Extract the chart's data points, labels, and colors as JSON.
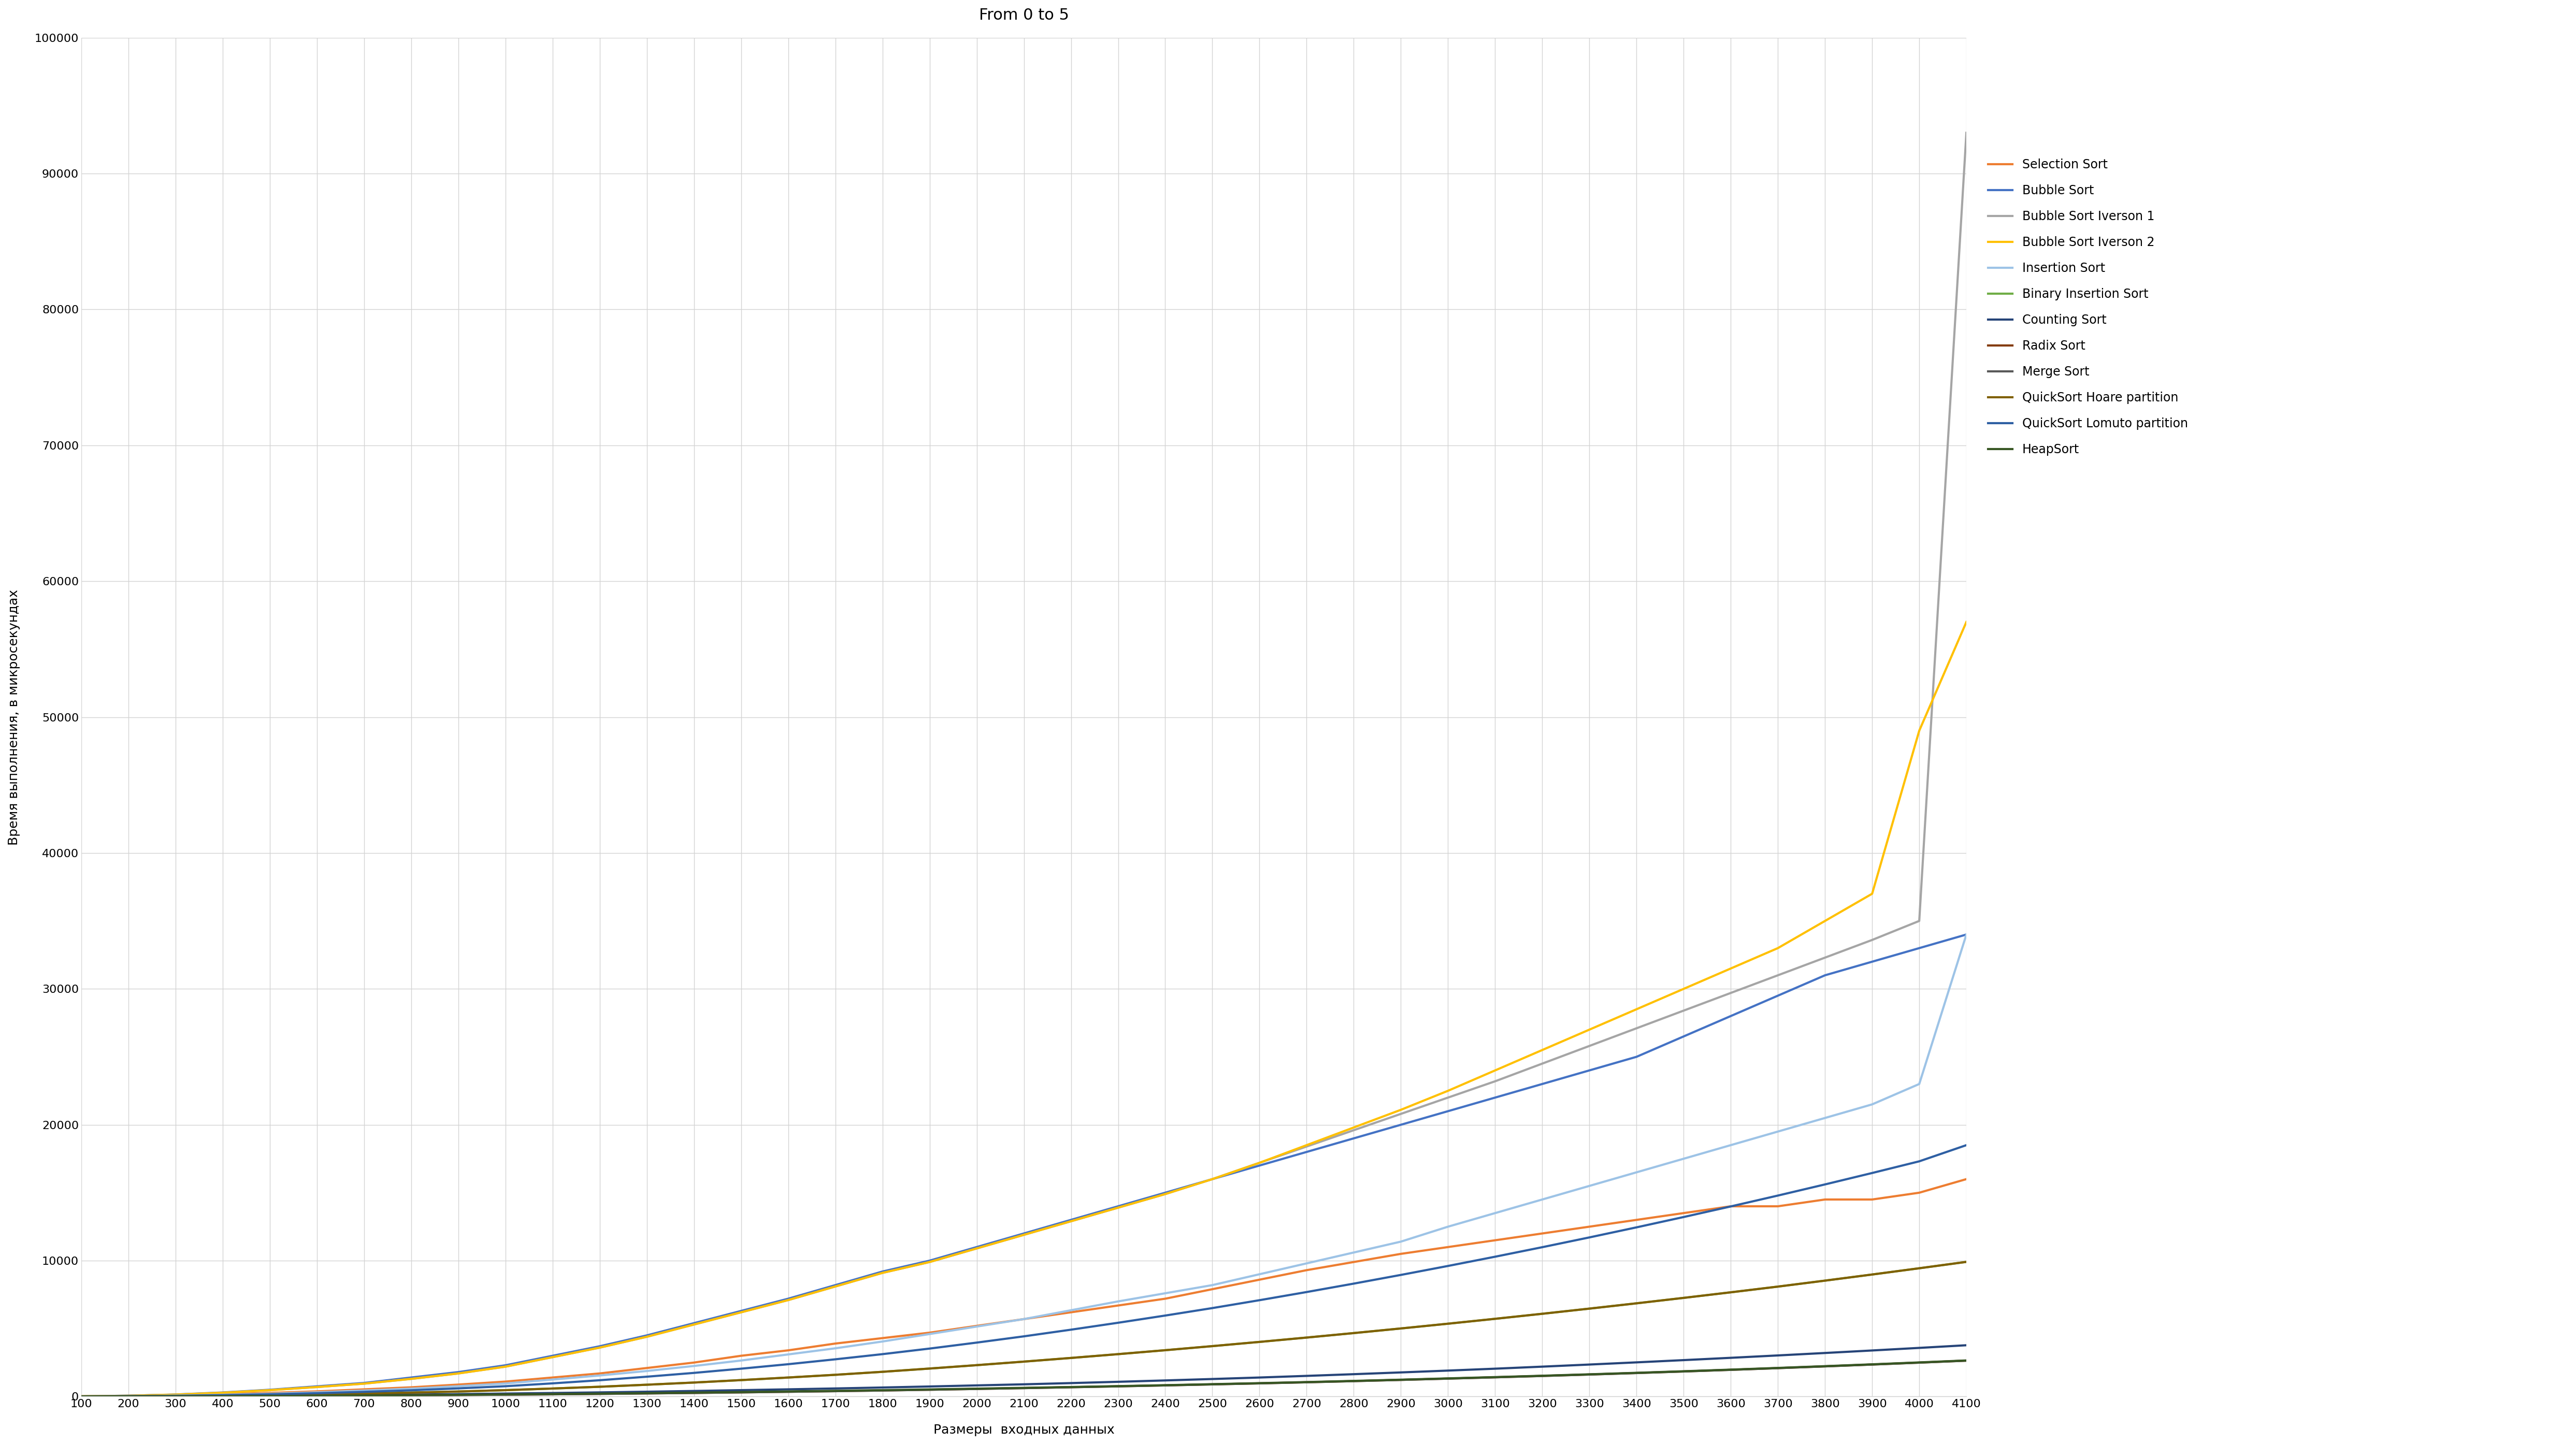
{
  "title": "From 0 to 5",
  "xlabel": "Размеры  входных данных",
  "ylabel": "Время выполнения, в микросекундах",
  "x": [
    100,
    200,
    300,
    400,
    500,
    600,
    700,
    800,
    900,
    1000,
    1100,
    1200,
    1300,
    1400,
    1500,
    1600,
    1700,
    1800,
    1900,
    2000,
    2100,
    2200,
    2300,
    2400,
    2500,
    2600,
    2700,
    2800,
    2900,
    3000,
    3100,
    3200,
    3300,
    3400,
    3500,
    3600,
    3700,
    3800,
    3900,
    4000,
    4100
  ],
  "series": {
    "Selection Sort": {
      "color": "#ED7D31",
      "data": [
        20,
        50,
        100,
        180,
        270,
        380,
        530,
        680,
        880,
        1100,
        1400,
        1700,
        2100,
        2500,
        3000,
        3400,
        3900,
        4300,
        4700,
        5200,
        5700,
        6200,
        6700,
        7200,
        7900,
        8600,
        9300,
        9900,
        10500,
        11000,
        11500,
        12000,
        12500,
        13000,
        13500,
        14000,
        14000,
        14500,
        14500,
        15000,
        16000
      ]
    },
    "Bubble Sort": {
      "color": "#4472C4",
      "data": [
        20,
        60,
        150,
        300,
        500,
        750,
        1000,
        1400,
        1800,
        2300,
        3000,
        3700,
        4500,
        5400,
        6300,
        7200,
        8200,
        9200,
        10000,
        11000,
        12000,
        13000,
        14000,
        15000,
        16000,
        17000,
        18000,
        19000,
        20000,
        21000,
        22000,
        23000,
        24000,
        25000,
        26500,
        28000,
        29500,
        31000,
        32000,
        33000,
        34000
      ]
    },
    "Bubble Sort Iverson 1": {
      "color": "#A5A5A5",
      "data": [
        20,
        60,
        140,
        280,
        470,
        700,
        950,
        1300,
        1700,
        2200,
        2900,
        3600,
        4400,
        5300,
        6200,
        7100,
        8100,
        9100,
        9900,
        10900,
        11900,
        12900,
        13900,
        14900,
        16000,
        17200,
        18400,
        19600,
        20800,
        22000,
        23200,
        24500,
        25800,
        27100,
        28400,
        29700,
        31000,
        32300,
        33600,
        35000,
        93000
      ]
    },
    "Bubble Sort Iverson 2": {
      "color": "#FFC000",
      "data": [
        20,
        60,
        140,
        280,
        470,
        700,
        950,
        1300,
        1700,
        2200,
        2900,
        3600,
        4400,
        5300,
        6200,
        7100,
        8100,
        9100,
        9900,
        10900,
        11900,
        12900,
        13900,
        14900,
        16000,
        17200,
        18500,
        19800,
        21100,
        22500,
        24000,
        25500,
        27000,
        28500,
        30000,
        31500,
        33000,
        35000,
        37000,
        49000,
        57000
      ]
    },
    "Insertion Sort": {
      "color": "#9DC3E6",
      "data": [
        10,
        30,
        70,
        130,
        210,
        310,
        440,
        580,
        760,
        960,
        1250,
        1550,
        1880,
        2250,
        2650,
        3100,
        3550,
        4050,
        4600,
        5150,
        5700,
        6350,
        7000,
        7600,
        8200,
        9000,
        9800,
        10600,
        11400,
        12500,
        13500,
        14500,
        15500,
        16500,
        17500,
        18500,
        19500,
        20500,
        21500,
        23000,
        34000
      ]
    },
    "Binary Insertion Sort": {
      "color": "#70AD47",
      "data": [
        10,
        20,
        40,
        70,
        110,
        160,
        220,
        290,
        370,
        470,
        590,
        720,
        870,
        1030,
        1210,
        1400,
        1600,
        1820,
        2060,
        2310,
        2570,
        2840,
        3120,
        3410,
        3710,
        4020,
        4340,
        4670,
        5010,
        5360,
        5720,
        6090,
        6470,
        6860,
        7260,
        7670,
        8090,
        8530,
        8980,
        9440,
        9910
      ]
    },
    "Counting Sort": {
      "color": "#264478",
      "data": [
        10,
        20,
        35,
        50,
        70,
        90,
        115,
        145,
        180,
        220,
        260,
        305,
        355,
        410,
        470,
        530,
        595,
        665,
        740,
        820,
        900,
        990,
        1085,
        1185,
        1290,
        1400,
        1520,
        1645,
        1775,
        1910,
        2050,
        2200,
        2355,
        2515,
        2680,
        2850,
        3025,
        3205,
        3390,
        3580,
        3775
      ]
    },
    "Radix Sort": {
      "color": "#843C0C",
      "data": [
        10,
        15,
        25,
        35,
        45,
        60,
        75,
        95,
        115,
        140,
        165,
        195,
        230,
        265,
        305,
        350,
        395,
        445,
        500,
        560,
        620,
        685,
        750,
        820,
        895,
        970,
        1050,
        1135,
        1225,
        1320,
        1415,
        1515,
        1620,
        1730,
        1845,
        1965,
        2090,
        2220,
        2355,
        2495,
        2640
      ]
    },
    "Merge Sort": {
      "color": "#595959",
      "data": [
        10,
        15,
        25,
        35,
        45,
        60,
        75,
        95,
        115,
        140,
        165,
        195,
        230,
        265,
        305,
        350,
        395,
        445,
        500,
        560,
        620,
        685,
        750,
        820,
        895,
        970,
        1050,
        1135,
        1225,
        1320,
        1415,
        1515,
        1620,
        1730,
        1845,
        1965,
        2090,
        2220,
        2355,
        2495,
        2640
      ]
    },
    "QuickSort Hoare partition": {
      "color": "#7F6000",
      "data": [
        10,
        20,
        40,
        70,
        110,
        160,
        220,
        290,
        370,
        470,
        590,
        720,
        870,
        1030,
        1210,
        1400,
        1600,
        1820,
        2060,
        2310,
        2570,
        2840,
        3120,
        3410,
        3710,
        4020,
        4340,
        4670,
        5010,
        5360,
        5720,
        6090,
        6470,
        6860,
        7260,
        7670,
        8090,
        8530,
        8980,
        9440,
        9910
      ]
    },
    "QuickSort Lomuto partition": {
      "color": "#2E5FA3",
      "data": [
        10,
        25,
        55,
        100,
        165,
        245,
        345,
        460,
        600,
        760,
        970,
        1200,
        1460,
        1740,
        2050,
        2380,
        2740,
        3120,
        3530,
        3970,
        4430,
        4920,
        5430,
        5960,
        6510,
        7090,
        7690,
        8310,
        8950,
        9610,
        10290,
        10990,
        11710,
        12450,
        13210,
        13990,
        14790,
        15610,
        16450,
        17310,
        18500
      ]
    },
    "HeapSort": {
      "color": "#375623",
      "data": [
        5,
        10,
        20,
        30,
        45,
        60,
        80,
        100,
        125,
        155,
        185,
        215,
        250,
        290,
        330,
        375,
        420,
        470,
        525,
        580,
        640,
        700,
        765,
        835,
        910,
        985,
        1065,
        1150,
        1240,
        1335,
        1430,
        1530,
        1635,
        1745,
        1860,
        1980,
        2105,
        2235,
        2370,
        2510,
        2655
      ]
    }
  },
  "ylim": [
    0,
    100000
  ],
  "yticks": [
    0,
    10000,
    20000,
    30000,
    40000,
    50000,
    60000,
    70000,
    80000,
    90000,
    100000
  ],
  "background_color": "#ffffff",
  "grid_color": "#d3d3d3",
  "title_fontsize": 22,
  "label_fontsize": 18,
  "tick_fontsize": 16,
  "legend_fontsize": 17
}
